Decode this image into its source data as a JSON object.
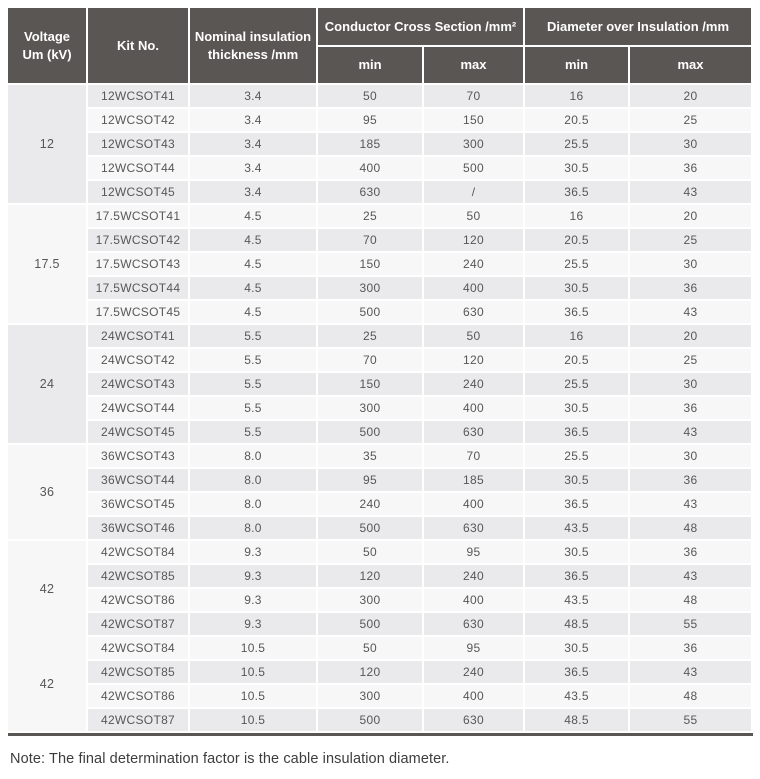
{
  "colors": {
    "header_bg": "#5a5653",
    "header_text": "#ffffff",
    "row_odd_bg": "#eaeaec",
    "row_even_bg": "#f7f7f8",
    "cell_text": "#57575a",
    "note_text": "#3d3d3f"
  },
  "table": {
    "header": {
      "voltage": "Voltage\nUm (kV)",
      "kit": "Kit No.",
      "thickness": "Nominal insulation\nthickness /mm",
      "conductor_group": "Conductor Cross Section /mm²",
      "diameter_group": "Diameter over Insulation /mm",
      "conductor_min": "min",
      "conductor_max": "max",
      "diameter_min": "min",
      "diameter_max": "max"
    },
    "groups": [
      {
        "voltage": "12",
        "rows": [
          {
            "kit": "12WCSOT41",
            "thickness": "3.4",
            "ccs_min": "50",
            "ccs_max": "70",
            "dia_min": "16",
            "dia_max": "20"
          },
          {
            "kit": "12WCSOT42",
            "thickness": "3.4",
            "ccs_min": "95",
            "ccs_max": "150",
            "dia_min": "20.5",
            "dia_max": "25"
          },
          {
            "kit": "12WCSOT43",
            "thickness": "3.4",
            "ccs_min": "185",
            "ccs_max": "300",
            "dia_min": "25.5",
            "dia_max": "30"
          },
          {
            "kit": "12WCSOT44",
            "thickness": "3.4",
            "ccs_min": "400",
            "ccs_max": "500",
            "dia_min": "30.5",
            "dia_max": "36"
          },
          {
            "kit": "12WCSOT45",
            "thickness": "3.4",
            "ccs_min": "630",
            "ccs_max": "/",
            "dia_min": "36.5",
            "dia_max": "43"
          }
        ]
      },
      {
        "voltage": "17.5",
        "rows": [
          {
            "kit": "17.5WCSOT41",
            "thickness": "4.5",
            "ccs_min": "25",
            "ccs_max": "50",
            "dia_min": "16",
            "dia_max": "20"
          },
          {
            "kit": "17.5WCSOT42",
            "thickness": "4.5",
            "ccs_min": "70",
            "ccs_max": "120",
            "dia_min": "20.5",
            "dia_max": "25"
          },
          {
            "kit": "17.5WCSOT43",
            "thickness": "4.5",
            "ccs_min": "150",
            "ccs_max": "240",
            "dia_min": "25.5",
            "dia_max": "30"
          },
          {
            "kit": "17.5WCSOT44",
            "thickness": "4.5",
            "ccs_min": "300",
            "ccs_max": "400",
            "dia_min": "30.5",
            "dia_max": "36"
          },
          {
            "kit": "17.5WCSOT45",
            "thickness": "4.5",
            "ccs_min": "500",
            "ccs_max": "630",
            "dia_min": "36.5",
            "dia_max": "43"
          }
        ]
      },
      {
        "voltage": "24",
        "rows": [
          {
            "kit": "24WCSOT41",
            "thickness": "5.5",
            "ccs_min": "25",
            "ccs_max": "50",
            "dia_min": "16",
            "dia_max": "20"
          },
          {
            "kit": "24WCSOT42",
            "thickness": "5.5",
            "ccs_min": "70",
            "ccs_max": "120",
            "dia_min": "20.5",
            "dia_max": "25"
          },
          {
            "kit": "24WCSOT43",
            "thickness": "5.5",
            "ccs_min": "150",
            "ccs_max": "240",
            "dia_min": "25.5",
            "dia_max": "30"
          },
          {
            "kit": "24WCSOT44",
            "thickness": "5.5",
            "ccs_min": "300",
            "ccs_max": "400",
            "dia_min": "30.5",
            "dia_max": "36"
          },
          {
            "kit": "24WCSOT45",
            "thickness": "5.5",
            "ccs_min": "500",
            "ccs_max": "630",
            "dia_min": "36.5",
            "dia_max": "43"
          }
        ]
      },
      {
        "voltage": "36",
        "rows": [
          {
            "kit": "36WCSOT43",
            "thickness": "8.0",
            "ccs_min": "35",
            "ccs_max": "70",
            "dia_min": "25.5",
            "dia_max": "30"
          },
          {
            "kit": "36WCSOT44",
            "thickness": "8.0",
            "ccs_min": "95",
            "ccs_max": "185",
            "dia_min": "30.5",
            "dia_max": "36"
          },
          {
            "kit": "36WCSOT45",
            "thickness": "8.0",
            "ccs_min": "240",
            "ccs_max": "400",
            "dia_min": "36.5",
            "dia_max": "43"
          },
          {
            "kit": "36WCSOT46",
            "thickness": "8.0",
            "ccs_min": "500",
            "ccs_max": "630",
            "dia_min": "43.5",
            "dia_max": "48"
          }
        ]
      },
      {
        "voltage": "42",
        "voltage_cell_shared_with_next": true,
        "rows": [
          {
            "kit": "42WCSOT84",
            "thickness": "9.3",
            "ccs_min": "50",
            "ccs_max": "95",
            "dia_min": "30.5",
            "dia_max": "36"
          },
          {
            "kit": "42WCSOT85",
            "thickness": "9.3",
            "ccs_min": "120",
            "ccs_max": "240",
            "dia_min": "36.5",
            "dia_max": "43"
          },
          {
            "kit": "42WCSOT86",
            "thickness": "9.3",
            "ccs_min": "300",
            "ccs_max": "400",
            "dia_min": "43.5",
            "dia_max": "48"
          },
          {
            "kit": "42WCSOT87",
            "thickness": "9.3",
            "ccs_min": "500",
            "ccs_max": "630",
            "dia_min": "48.5",
            "dia_max": "55"
          }
        ]
      },
      {
        "voltage": "42",
        "voltage_cell_shared_with_prev": true,
        "rows": [
          {
            "kit": "42WCSOT84",
            "thickness": "10.5",
            "ccs_min": "50",
            "ccs_max": "95",
            "dia_min": "30.5",
            "dia_max": "36"
          },
          {
            "kit": "42WCSOT85",
            "thickness": "10.5",
            "ccs_min": "120",
            "ccs_max": "240",
            "dia_min": "36.5",
            "dia_max": "43"
          },
          {
            "kit": "42WCSOT86",
            "thickness": "10.5",
            "ccs_min": "300",
            "ccs_max": "400",
            "dia_min": "43.5",
            "dia_max": "48"
          },
          {
            "kit": "42WCSOT87",
            "thickness": "10.5",
            "ccs_min": "500",
            "ccs_max": "630",
            "dia_min": "48.5",
            "dia_max": "55"
          }
        ]
      }
    ],
    "note": "Note: The final determination factor is the cable insulation diameter."
  }
}
